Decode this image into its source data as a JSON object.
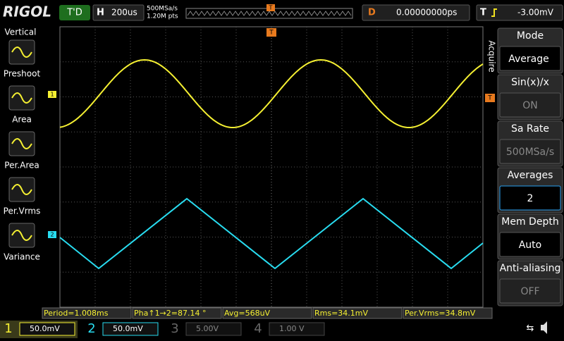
{
  "header": {
    "brand": "RIGOL",
    "run_state": "T'D",
    "timebase_label": "H",
    "timebase": "200us",
    "sample_rate": "500MSa/s",
    "memory_depth": "1.20M pts",
    "trigger_marker": "T",
    "delay_label": "D",
    "delay": "0.00000000ps",
    "trigger_label": "T",
    "trigger_level": "-3.00mV"
  },
  "left_menu": {
    "title": "Vertical",
    "items": [
      "Preshoot",
      "Area",
      "Per.Area",
      "Per.Vrms",
      "Variance"
    ]
  },
  "right_menu": {
    "side_label": "Acquire",
    "items": [
      {
        "label": "Mode",
        "value": "Average"
      },
      {
        "label": "Sin(x)/x",
        "value": "ON"
      },
      {
        "label": "Sa Rate",
        "value": "500MSa/s"
      },
      {
        "label": "Averages",
        "value": "2"
      },
      {
        "label": "Mem Depth",
        "value": "Auto"
      },
      {
        "label": "Anti-aliasing",
        "value": "OFF"
      }
    ]
  },
  "markers": {
    "ch1": "1",
    "ch2": "2",
    "trigger_level": "T",
    "trigger_position": "T"
  },
  "measurements": [
    "Period=1.008ms",
    "Pha↑1→2=87.14 °",
    "Avg=568uV",
    "Rms=34.1mV",
    "Per.Vrms=34.8mV"
  ],
  "channels": [
    {
      "number": "1",
      "scale": "50.0mV"
    },
    {
      "number": "2",
      "scale": "50.0mV"
    },
    {
      "number": "3",
      "scale": "5.00V"
    },
    {
      "number": "4",
      "scale": "1.00 V"
    }
  ]
}
